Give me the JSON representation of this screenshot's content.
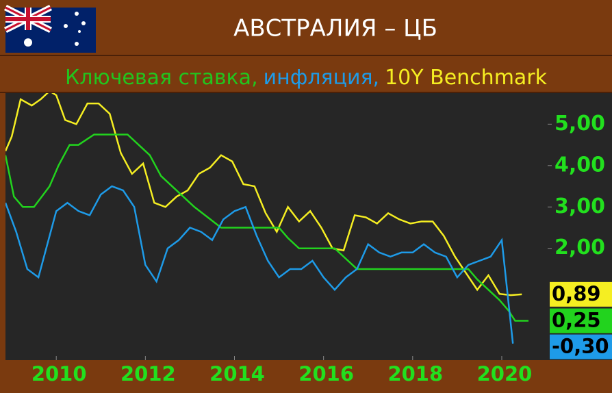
{
  "chart_data": {
    "type": "line",
    "title": "АВСТРАЛИЯ – ЦБ",
    "subtitle": [
      {
        "text": "Ключевая ставка,",
        "color": "#22c51e"
      },
      {
        "text": "инфляция,",
        "color": "#1e9be8"
      },
      {
        "text": "10Y Benchmark",
        "color": "#f5ee22"
      }
    ],
    "xlim": [
      2008.86,
      2021.03
    ],
    "xticks": [
      2010,
      2012,
      2014,
      2016,
      2018,
      2020
    ],
    "ylim": [
      -0.7,
      5.75
    ],
    "yticks": [
      {
        "value": 2,
        "label": "2,00"
      },
      {
        "value": 3,
        "label": "3,00"
      },
      {
        "value": 4,
        "label": "4,00"
      },
      {
        "value": 5,
        "label": "5,00"
      }
    ],
    "grid": false,
    "series": [
      {
        "color": "#f5ee22",
        "x": [
          2008.86,
          2009.0,
          2009.2,
          2009.45,
          2009.65,
          2009.85,
          2010.0,
          2010.2,
          2010.45,
          2010.7,
          2010.95,
          2011.2,
          2011.45,
          2011.7,
          2011.95,
          2012.2,
          2012.45,
          2012.7,
          2012.95,
          2013.2,
          2013.45,
          2013.7,
          2013.95,
          2014.2,
          2014.45,
          2014.7,
          2014.95,
          2015.2,
          2015.45,
          2015.7,
          2015.95,
          2016.2,
          2016.45,
          2016.7,
          2016.95,
          2017.2,
          2017.45,
          2017.7,
          2017.95,
          2018.2,
          2018.45,
          2018.7,
          2018.95,
          2019.2,
          2019.45,
          2019.7,
          2019.95,
          2020.2,
          2020.45
        ],
        "values": [
          4.35,
          4.7,
          5.6,
          5.45,
          5.6,
          5.8,
          5.7,
          5.1,
          5.0,
          5.5,
          5.5,
          5.25,
          4.3,
          3.8,
          4.05,
          3.1,
          3.0,
          3.25,
          3.4,
          3.8,
          3.95,
          4.25,
          4.1,
          3.55,
          3.5,
          2.85,
          2.4,
          3.0,
          2.65,
          2.9,
          2.5,
          2.0,
          1.95,
          2.8,
          2.75,
          2.6,
          2.85,
          2.7,
          2.6,
          2.65,
          2.65,
          2.3,
          1.8,
          1.4,
          1.0,
          1.35,
          0.9,
          0.87,
          0.89
        ],
        "value_labels": [
          null,
          null,
          null,
          null,
          null,
          null,
          null,
          null,
          null,
          null,
          null,
          null,
          null,
          null,
          null,
          null,
          null,
          null,
          null,
          null,
          null,
          null,
          null,
          null,
          null,
          null,
          null,
          null,
          null,
          null,
          null,
          null,
          null,
          null,
          null,
          null,
          null,
          null,
          null,
          null,
          null,
          null,
          null,
          null,
          null,
          null,
          null,
          null,
          "0,89"
        ]
      },
      {
        "color": "#22d31e",
        "x": [
          2008.86,
          2009.05,
          2009.25,
          2009.5,
          2009.85,
          2010.05,
          2010.3,
          2010.5,
          2010.85,
          2011.0,
          2011.6,
          2011.85,
          2012.1,
          2012.35,
          2012.6,
          2012.85,
          2013.1,
          2013.4,
          2013.7,
          2015.0,
          2015.2,
          2015.45,
          2015.7,
          2016.25,
          2016.5,
          2016.75,
          2019.25,
          2019.45,
          2019.7,
          2019.95,
          2020.15,
          2020.3,
          2020.6
        ],
        "values": [
          4.25,
          3.25,
          3.0,
          3.0,
          3.5,
          4.0,
          4.5,
          4.5,
          4.75,
          4.75,
          4.75,
          4.5,
          4.25,
          3.75,
          3.5,
          3.25,
          3.0,
          2.75,
          2.5,
          2.5,
          2.25,
          2.0,
          2.0,
          2.0,
          1.75,
          1.5,
          1.5,
          1.25,
          1.0,
          0.75,
          0.5,
          0.25,
          0.25
        ],
        "value_labels": [
          null,
          null,
          null,
          null,
          null,
          null,
          null,
          null,
          null,
          null,
          null,
          null,
          null,
          null,
          null,
          null,
          null,
          null,
          null,
          null,
          null,
          null,
          null,
          null,
          null,
          null,
          null,
          null,
          null,
          null,
          null,
          null,
          "0,25"
        ]
      },
      {
        "color": "#1e9be8",
        "x": [
          2008.86,
          2009.1,
          2009.35,
          2009.6,
          2010.0,
          2010.25,
          2010.5,
          2010.75,
          2011.0,
          2011.25,
          2011.5,
          2011.75,
          2012.0,
          2012.25,
          2012.5,
          2012.75,
          2013.0,
          2013.25,
          2013.5,
          2013.75,
          2014.0,
          2014.25,
          2014.5,
          2014.75,
          2015.0,
          2015.25,
          2015.5,
          2015.75,
          2016.0,
          2016.25,
          2016.5,
          2016.75,
          2017.0,
          2017.25,
          2017.5,
          2017.75,
          2018.0,
          2018.25,
          2018.5,
          2018.75,
          2019.0,
          2019.25,
          2019.5,
          2019.75,
          2020.0,
          2020.25
        ],
        "values": [
          3.1,
          2.4,
          1.5,
          1.3,
          2.9,
          3.1,
          2.9,
          2.8,
          3.3,
          3.5,
          3.4,
          3.0,
          1.6,
          1.2,
          2.0,
          2.2,
          2.5,
          2.4,
          2.2,
          2.7,
          2.9,
          3.0,
          2.3,
          1.7,
          1.3,
          1.5,
          1.5,
          1.7,
          1.3,
          1.0,
          1.3,
          1.5,
          2.1,
          1.9,
          1.8,
          1.9,
          1.9,
          2.1,
          1.9,
          1.8,
          1.3,
          1.6,
          1.7,
          1.8,
          2.2,
          -0.3
        ],
        "value_labels": [
          null,
          null,
          null,
          null,
          null,
          null,
          null,
          null,
          null,
          null,
          null,
          null,
          null,
          null,
          null,
          null,
          null,
          null,
          null,
          null,
          null,
          null,
          null,
          null,
          null,
          null,
          null,
          null,
          null,
          null,
          null,
          null,
          null,
          null,
          null,
          null,
          null,
          null,
          null,
          null,
          null,
          null,
          null,
          null,
          null,
          "-0,30"
        ]
      }
    ]
  }
}
